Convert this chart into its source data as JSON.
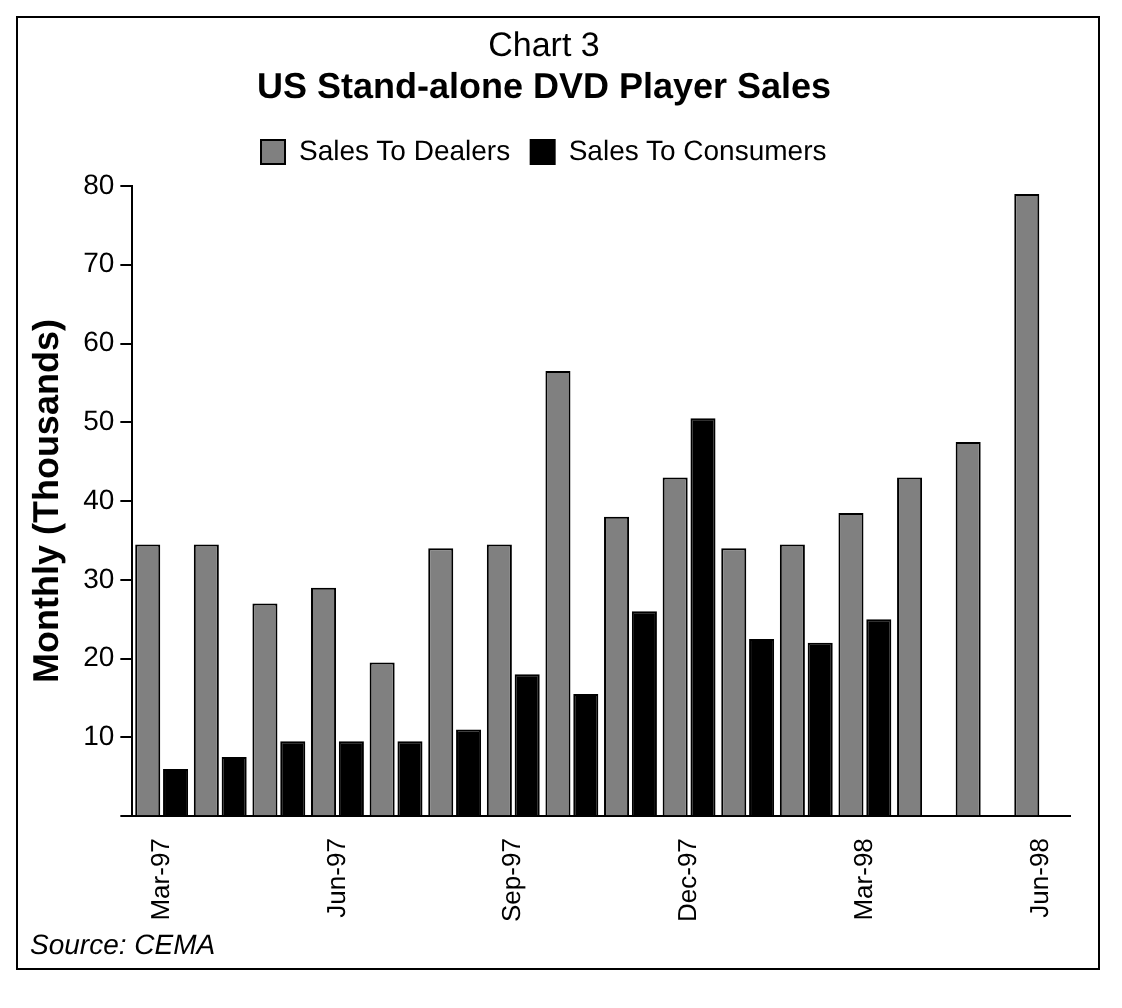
{
  "chart_data": {
    "type": "bar",
    "title": "Chart 3",
    "subtitle": "US Stand-alone DVD Player Sales",
    "ylabel": "Monthly (Thousands)",
    "categories": [
      "Mar-97",
      null,
      null,
      "Jun-97",
      null,
      null,
      "Sep-97",
      null,
      null,
      "Dec-97",
      null,
      null,
      "Mar-98",
      null,
      null,
      "Jun-98"
    ],
    "series": [
      {
        "name": "Sales To Dealers",
        "color": "#808080",
        "values": [
          34.5,
          34.5,
          27,
          29,
          19.5,
          34,
          34.5,
          56.5,
          38,
          43,
          34,
          34.5,
          38.5,
          43,
          47.5,
          79
        ]
      },
      {
        "name": "Sales To Consumers",
        "color": "#000000",
        "values": [
          6,
          7.5,
          9.5,
          9.5,
          9.5,
          11,
          18,
          15.5,
          26,
          50.5,
          22.5,
          22,
          25,
          null,
          null,
          null
        ]
      }
    ],
    "ylim": [
      0,
      80
    ],
    "yticks": [
      {
        "value": 0,
        "label": null
      },
      10,
      20,
      30,
      40,
      50,
      60,
      70,
      80
    ],
    "grid": false,
    "legend": "top",
    "annotations": [
      "Source: CEMA"
    ]
  }
}
